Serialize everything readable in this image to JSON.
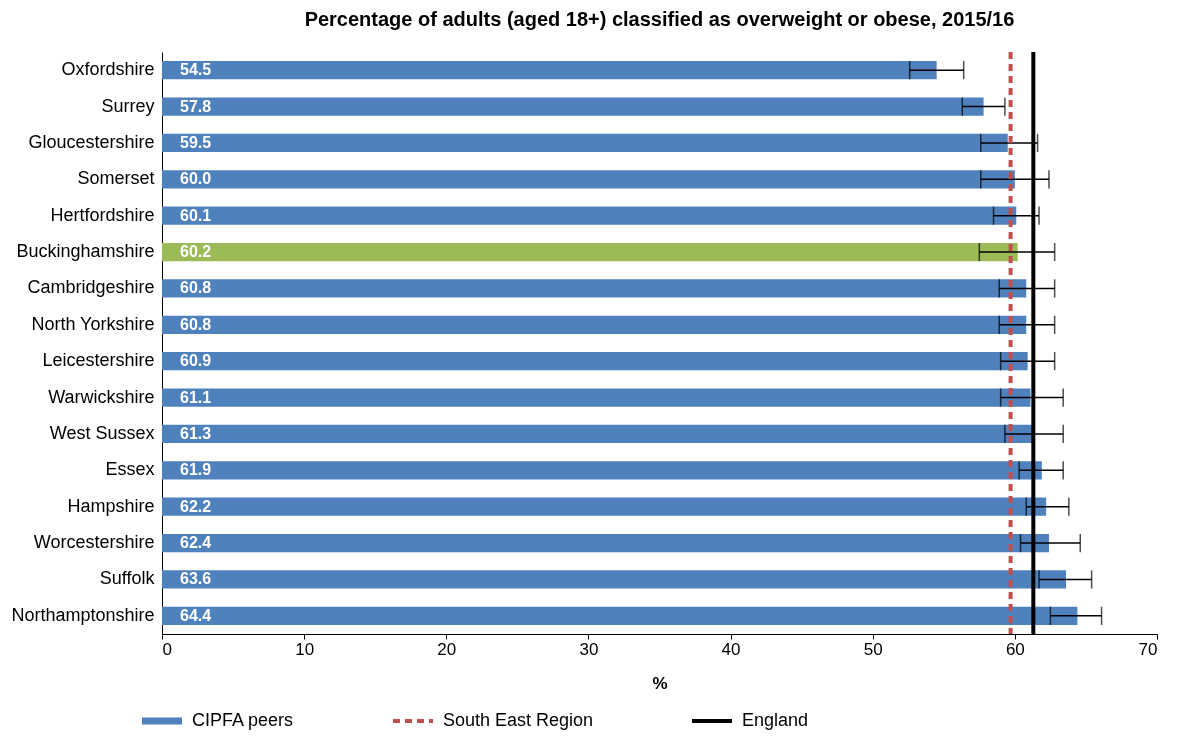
{
  "chart_data": {
    "type": "bar",
    "orientation": "horizontal",
    "title": "Percentage of adults (aged 18+) classified as overweight or obese, 2015/16",
    "xlabel": "%",
    "categories": [
      "Oxfordshire",
      "Surrey",
      "Gloucestershire",
      "Somerset",
      "Hertfordshire",
      "Buckinghamshire",
      "Cambridgeshire",
      "North Yorkshire",
      "Leicestershire",
      "Warwickshire",
      "West Sussex",
      "Essex",
      "Hampshire",
      "Worcestershire",
      "Suffolk",
      "Northamptonshire"
    ],
    "series": [
      {
        "name": "CIPFA peers",
        "color": "#4f81bd",
        "colors": [
          "#4f81bd",
          "#4f81bd",
          "#4f81bd",
          "#4f81bd",
          "#4f81bd",
          "#9bbb59",
          "#4f81bd",
          "#4f81bd",
          "#4f81bd",
          "#4f81bd",
          "#4f81bd",
          "#4f81bd",
          "#4f81bd",
          "#4f81bd",
          "#4f81bd",
          "#4f81bd"
        ],
        "values": [
          54.5,
          57.8,
          59.5,
          60.0,
          60.1,
          60.2,
          60.8,
          60.8,
          60.9,
          61.1,
          61.3,
          61.9,
          62.2,
          62.4,
          63.6,
          64.4
        ],
        "value_labels": [
          "54.5",
          "57.8",
          "59.5",
          "60.0",
          "60.1",
          "60.2",
          "60.8",
          "60.8",
          "60.9",
          "61.1",
          "61.3",
          "61.9",
          "62.2",
          "62.4",
          "63.6",
          "64.4"
        ],
        "errors": [
          [
            52.6,
            56.4
          ],
          [
            56.3,
            59.3
          ],
          [
            57.6,
            61.6
          ],
          [
            57.6,
            62.4
          ],
          [
            58.5,
            61.7
          ],
          [
            57.5,
            62.8
          ],
          [
            58.9,
            62.8
          ],
          [
            58.9,
            62.8
          ],
          [
            59.0,
            62.8
          ],
          [
            59.0,
            63.4
          ],
          [
            59.3,
            63.4
          ],
          [
            60.3,
            63.4
          ],
          [
            60.8,
            63.8
          ],
          [
            60.4,
            64.6
          ],
          [
            61.7,
            65.4
          ],
          [
            62.5,
            66.1
          ]
        ]
      }
    ],
    "ref_lines": [
      {
        "axis": "x",
        "value": 59.7,
        "label": "South East Region",
        "color": "#c0504d",
        "line_style": "dashed"
      },
      {
        "axis": "x",
        "value": 61.3,
        "label": "England",
        "color": "#000000",
        "line_style": "solid"
      }
    ],
    "xlim": [
      0,
      70
    ],
    "xticks": [
      0,
      10,
      20,
      30,
      40,
      50,
      60,
      70
    ],
    "grid": false,
    "legend": "bottom"
  }
}
